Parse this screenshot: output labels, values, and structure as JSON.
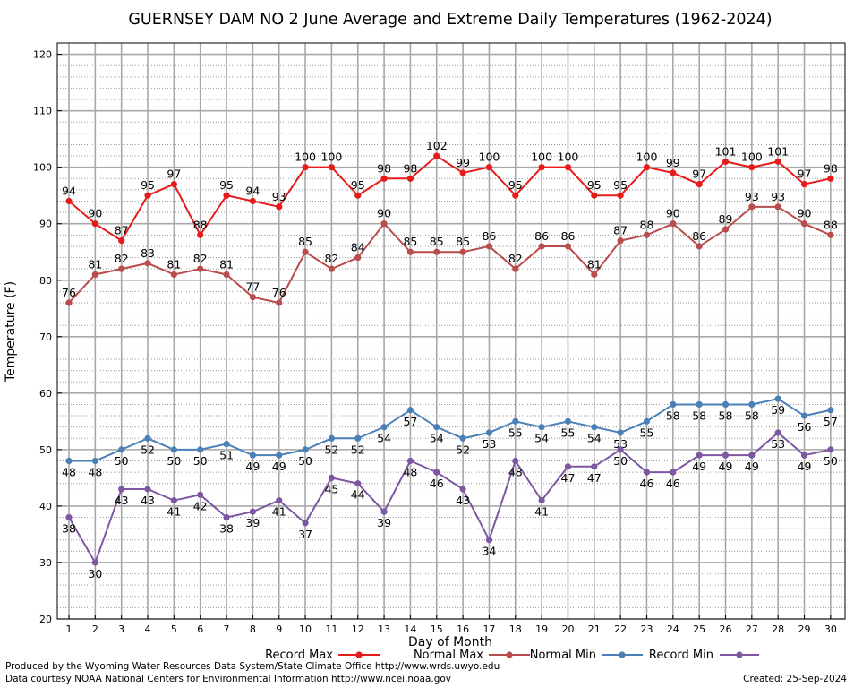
{
  "chart_data": {
    "type": "line",
    "title": "GUERNSEY DAM NO 2 June Average and Extreme Daily Temperatures (1962-2024)",
    "xlabel": "Day of Month",
    "ylabel": "Temperature (F)",
    "ylim": [
      20,
      122
    ],
    "yticks": [
      20,
      30,
      40,
      50,
      60,
      70,
      80,
      90,
      100,
      110,
      120
    ],
    "grid": true,
    "x": [
      1,
      2,
      3,
      4,
      5,
      6,
      7,
      8,
      9,
      10,
      11,
      12,
      13,
      14,
      15,
      16,
      17,
      18,
      19,
      20,
      21,
      22,
      23,
      24,
      25,
      26,
      27,
      28,
      29,
      30
    ],
    "series": [
      {
        "name": "Record Max",
        "color": "#e81b1b",
        "label_pos": "above",
        "values": [
          94,
          90,
          87,
          95,
          97,
          88,
          95,
          94,
          93,
          100,
          100,
          95,
          98,
          98,
          102,
          99,
          100,
          95,
          100,
          100,
          95,
          95,
          100,
          99,
          97,
          101,
          100,
          101,
          97,
          98
        ]
      },
      {
        "name": "Normal Max",
        "color": "#b94c4c",
        "label_pos": "above",
        "values": [
          76,
          81,
          82,
          83,
          81,
          82,
          81,
          77,
          76,
          85,
          82,
          84,
          90,
          85,
          85,
          85,
          86,
          82,
          86,
          86,
          81,
          87,
          88,
          90,
          86,
          89,
          93,
          93,
          90,
          88
        ]
      },
      {
        "name": "Normal Min",
        "color": "#4a80b5",
        "label_pos": "below",
        "values": [
          48,
          48,
          50,
          52,
          50,
          50,
          51,
          49,
          49,
          50,
          52,
          52,
          54,
          57,
          54,
          52,
          53,
          55,
          54,
          55,
          54,
          53,
          55,
          58,
          58,
          58,
          58,
          59,
          56,
          57
        ]
      },
      {
        "name": "Record Min",
        "color": "#7e57a2",
        "label_pos": "below",
        "values": [
          38,
          30,
          43,
          43,
          41,
          42,
          38,
          39,
          41,
          37,
          45,
          44,
          39,
          48,
          46,
          43,
          34,
          48,
          41,
          47,
          47,
          50,
          46,
          46,
          49,
          49,
          49,
          53,
          49,
          50
        ]
      }
    ]
  },
  "footer": {
    "produced_by": "Produced by the Wyoming Water Resources Data System/State Climate Office http://www.wrds.uwyo.edu",
    "data_courtesy": "Data courtesy NOAA National Centers for Environmental Information http://www.ncei.noaa.gov",
    "created": "Created:  25-Sep-2024"
  }
}
